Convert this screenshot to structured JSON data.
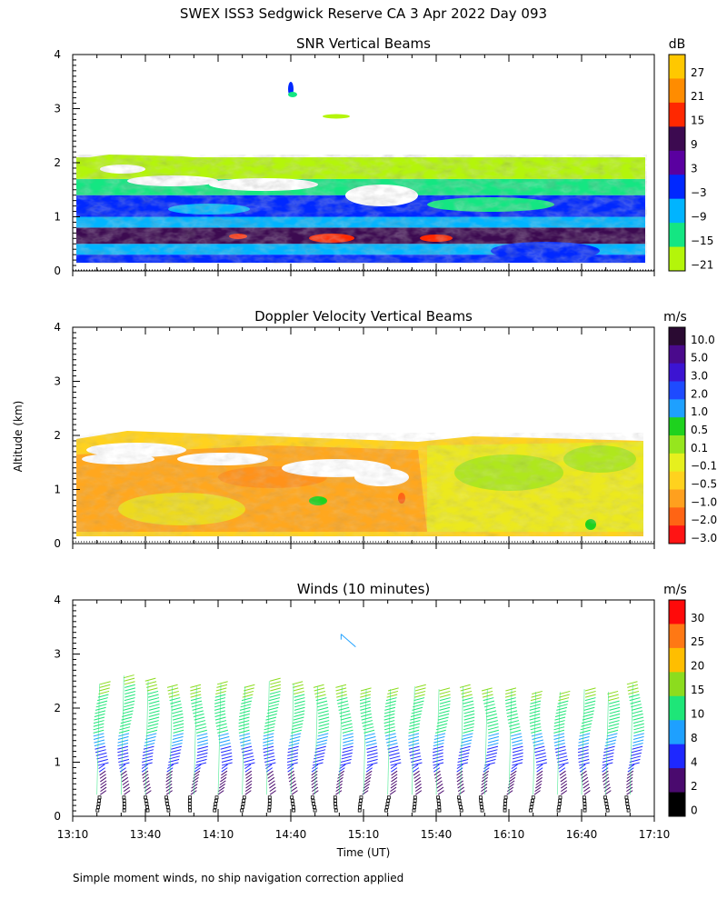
{
  "figure_title": "SWEX ISS3 Sedgwick Reserve CA   3 Apr 2022 Day 093",
  "footnote": "Simple moment winds, no ship navigation correction applied",
  "y_axis_label": "Altitude (km)",
  "x_axis_label": "Time (UT)",
  "chart_data": [
    {
      "type": "heatmap",
      "title": "SNR Vertical Beams",
      "units": "dB",
      "ylabel": "Altitude (km)",
      "ylim": [
        0,
        4
      ],
      "y_ticks": [
        "0",
        "1",
        "2",
        "3",
        "4"
      ],
      "colorbar": {
        "labels": [
          "27",
          "21",
          "15",
          "9",
          "3",
          "−3",
          "−9",
          "−15",
          "−21"
        ],
        "colors": [
          "#ffc800",
          "#ff8c00",
          "#ff2800",
          "#3c0a50",
          "#5a00a0",
          "#0028ff",
          "#00b4ff",
          "#14e682",
          "#b4f50a"
        ]
      },
      "layers": [
        {
          "alt_km": [
            0.15,
            0.3
          ],
          "snr_db": -3
        },
        {
          "alt_km": [
            0.3,
            0.5
          ],
          "snr_db": -9
        },
        {
          "alt_km": [
            0.5,
            0.8
          ],
          "snr_db": 9
        },
        {
          "alt_km": [
            0.8,
            1.0
          ],
          "snr_db": -9
        },
        {
          "alt_km": [
            1.0,
            1.4
          ],
          "snr_db": -3
        },
        {
          "alt_km": [
            1.4,
            1.7
          ],
          "snr_db": -15
        },
        {
          "alt_km": [
            1.7,
            2.1
          ],
          "snr_db": -21
        }
      ]
    },
    {
      "type": "heatmap",
      "title": "Doppler Velocity Vertical Beams",
      "units": "m/s",
      "ylabel": "Altitude (km)",
      "ylim": [
        0,
        4
      ],
      "y_ticks": [
        "0",
        "1",
        "2",
        "3",
        "4"
      ],
      "colorbar": {
        "labels": [
          "10.0",
          "5.0",
          "3.0",
          "2.0",
          "1.0",
          "0.5",
          "0.1",
          "−0.1",
          "−0.5",
          "−1.0",
          "−2.0",
          "−3.0"
        ],
        "colors": [
          "#2a0a32",
          "#4a0a8c",
          "#3c14d2",
          "#1e4bff",
          "#1ea0ff",
          "#1ed21e",
          "#96e61e",
          "#e6f01e",
          "#ffd21e",
          "#ffa01e",
          "#ff6414",
          "#ff1414"
        ]
      }
    },
    {
      "type": "wind_barbs",
      "title": "Winds (10 minutes)",
      "units": "m/s",
      "ylabel": "Altitude (km)",
      "xlabel": "Time (UT)",
      "ylim": [
        0,
        4
      ],
      "y_ticks": [
        "0",
        "1",
        "2",
        "3",
        "4"
      ],
      "x_ticks": [
        "13:10",
        "13:40",
        "14:10",
        "14:40",
        "15:10",
        "15:40",
        "16:10",
        "16:40",
        "17:10"
      ],
      "xlim_hours": [
        13.1667,
        17.1667
      ],
      "colorbar": {
        "labels": [
          "30",
          "25",
          "20",
          "15",
          "10",
          "8",
          "4",
          "2",
          "0"
        ],
        "colors": [
          "#ff0a0a",
          "#ff7814",
          "#ffbe00",
          "#8cdc1e",
          "#1ee678",
          "#1ea0ff",
          "#1e28ff",
          "#4a0a6e",
          "#000000"
        ]
      },
      "profiles": [
        {
          "time_hours": 13.333,
          "top_km": 2.45
        },
        {
          "time_hours": 13.5,
          "top_km": 2.6
        },
        {
          "time_hours": 13.667,
          "top_km": 2.5
        },
        {
          "time_hours": 13.833,
          "top_km": 2.4
        },
        {
          "time_hours": 14.0,
          "top_km": 2.4
        },
        {
          "time_hours": 14.167,
          "top_km": 2.45
        },
        {
          "time_hours": 14.333,
          "top_km": 2.4
        },
        {
          "time_hours": 14.5,
          "top_km": 2.5
        },
        {
          "time_hours": 14.667,
          "top_km": 2.45
        },
        {
          "time_hours": 14.833,
          "top_km": 2.4
        },
        {
          "time_hours": 15.0,
          "top_km": 2.4
        },
        {
          "time_hours": 15.167,
          "top_km": 2.35
        },
        {
          "time_hours": 15.333,
          "top_km": 2.35
        },
        {
          "time_hours": 15.5,
          "top_km": 2.4
        },
        {
          "time_hours": 15.667,
          "top_km": 2.35
        },
        {
          "time_hours": 15.833,
          "top_km": 2.4
        },
        {
          "time_hours": 16.0,
          "top_km": 2.35
        },
        {
          "time_hours": 16.167,
          "top_km": 2.35
        },
        {
          "time_hours": 16.333,
          "top_km": 2.3
        },
        {
          "time_hours": 16.5,
          "top_km": 2.3
        },
        {
          "time_hours": 16.667,
          "top_km": 2.35
        },
        {
          "time_hours": 16.833,
          "top_km": 2.3
        },
        {
          "time_hours": 17.0,
          "top_km": 2.45
        }
      ],
      "isolated_barbs": [
        {
          "time_hours": 15.05,
          "alt_km": 3.3
        }
      ]
    }
  ]
}
